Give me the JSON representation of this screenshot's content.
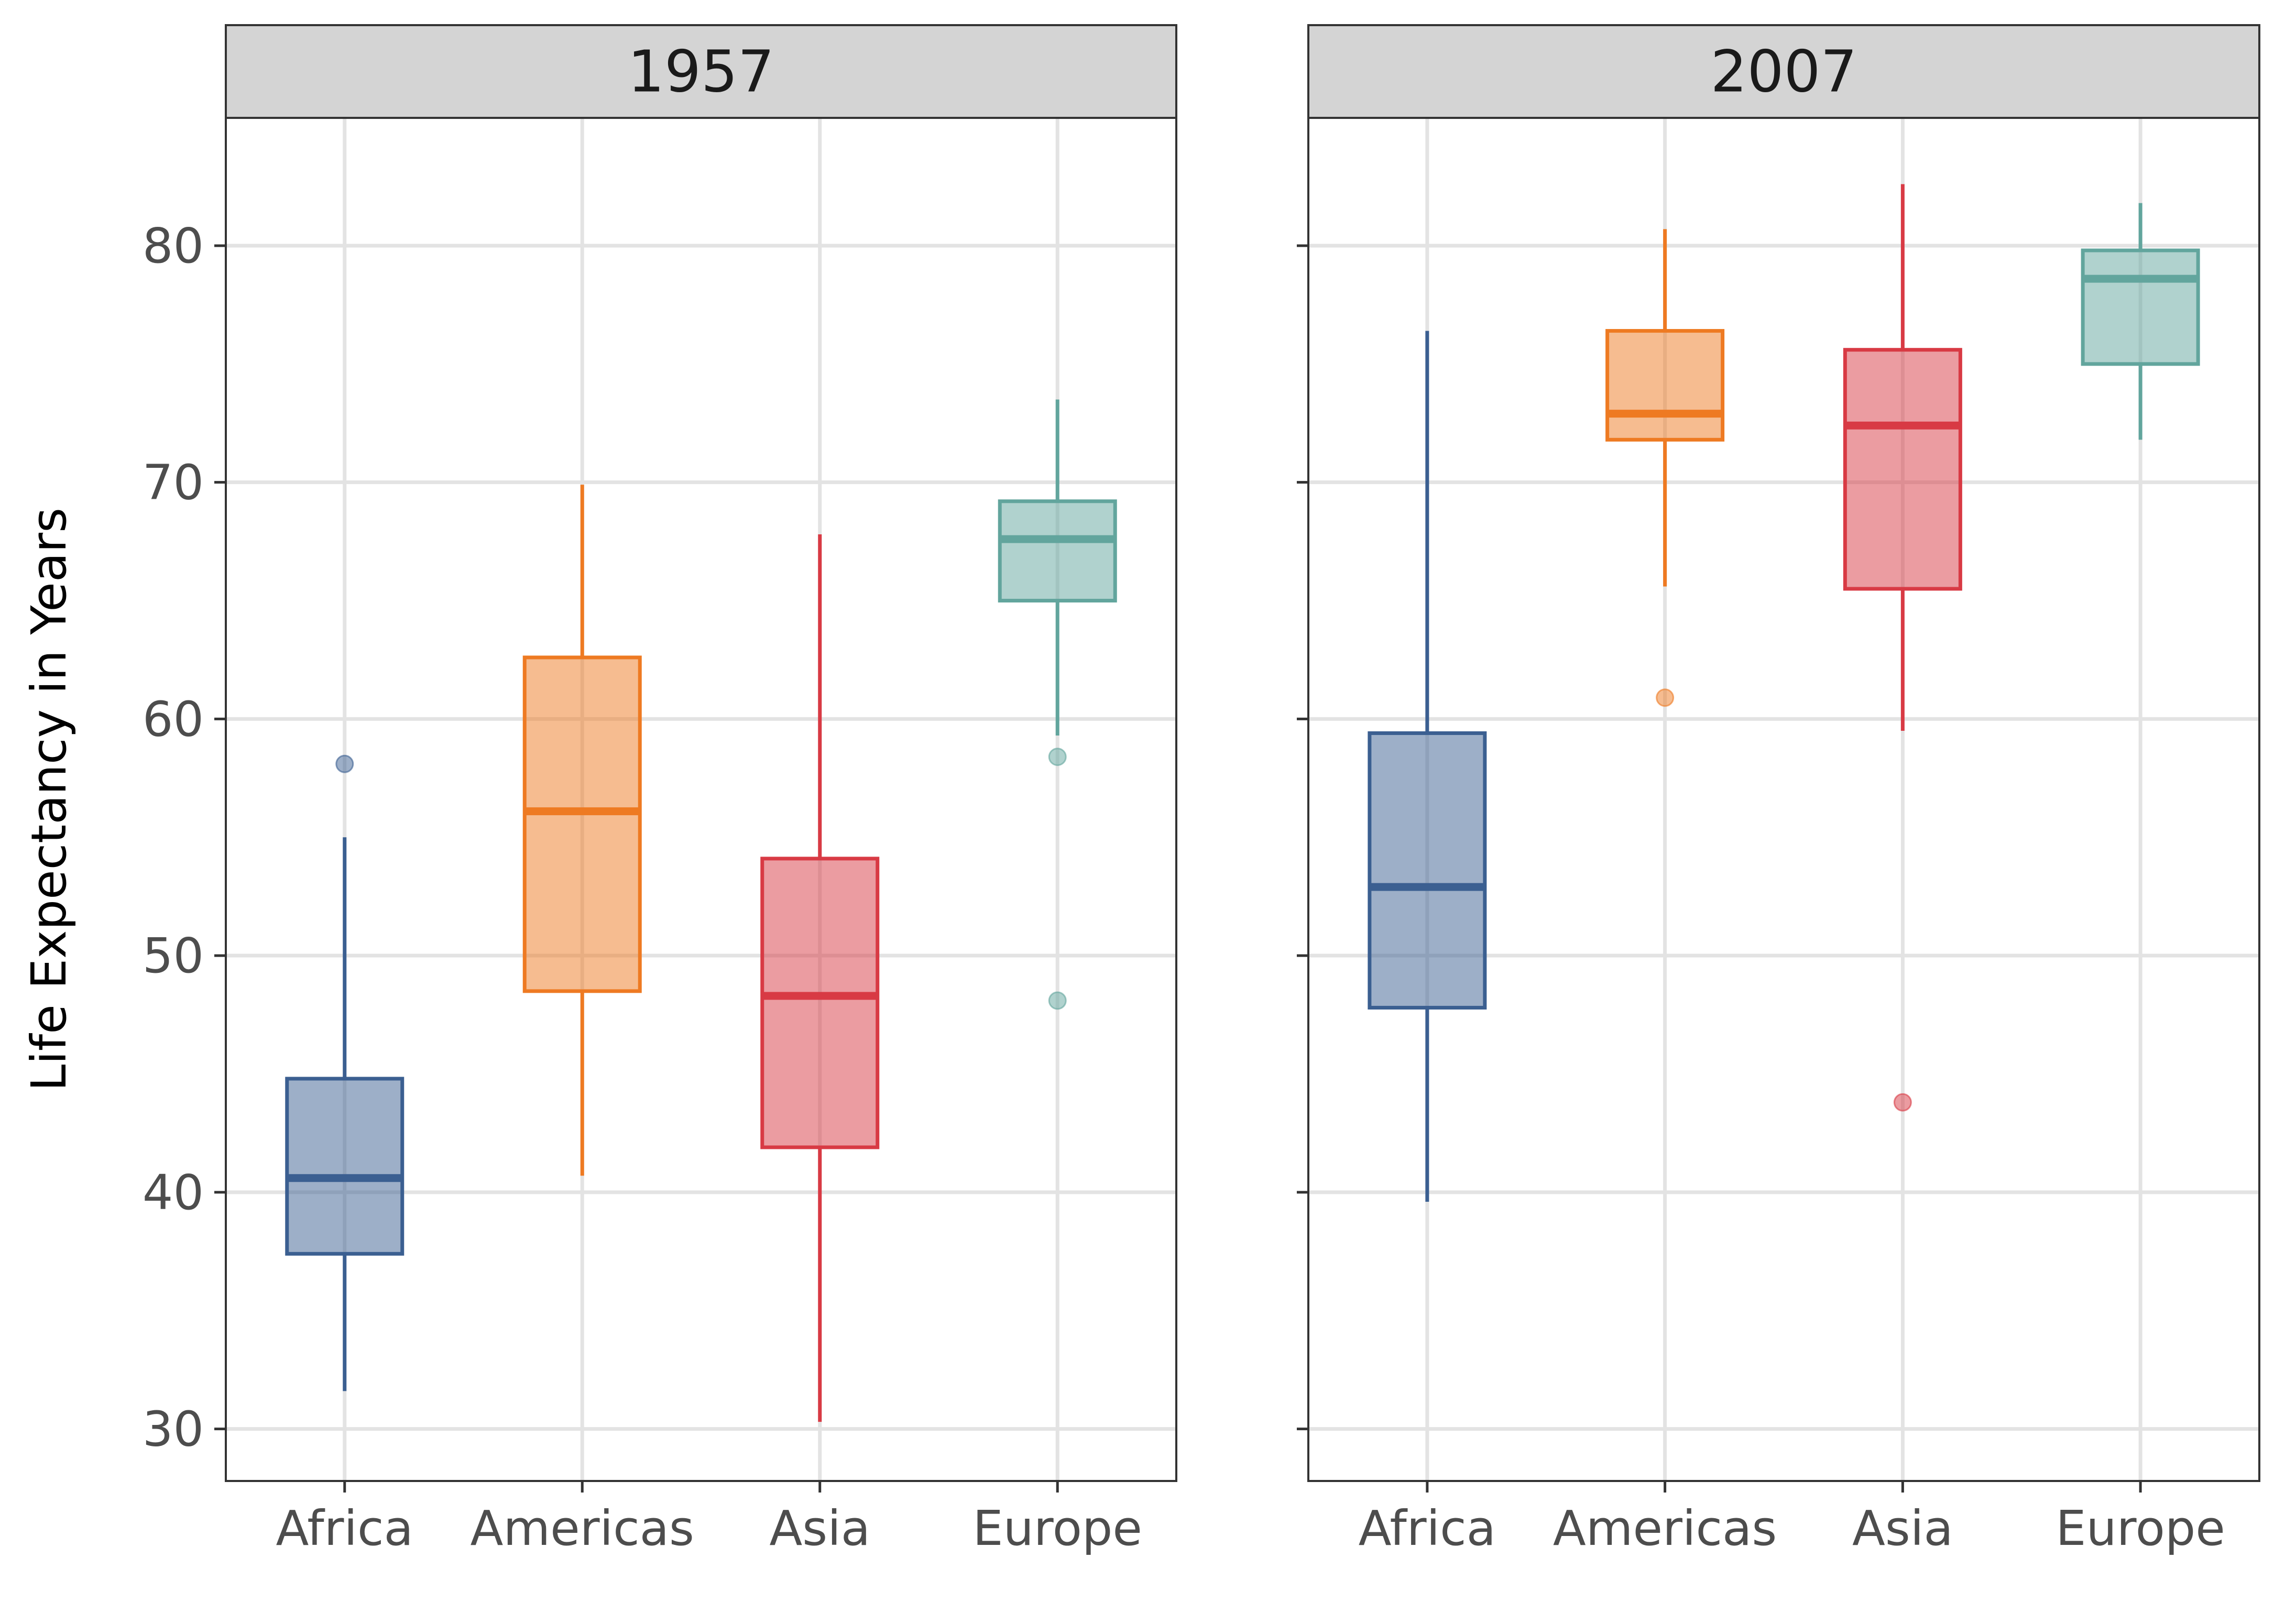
{
  "chart_data": {
    "type": "boxplot",
    "ylabel": "Life Expectancy in Years",
    "xlabel": "",
    "ylim": [
      27.8,
      85.4
    ],
    "yticks": [
      30,
      40,
      50,
      60,
      70,
      80
    ],
    "grid": true,
    "categories": [
      "Africa",
      "Americas",
      "Asia",
      "Europe"
    ],
    "colors": {
      "Africa": "#3b5f91",
      "Americas": "#ee7a22",
      "Asia": "#d83a44",
      "Europe": "#62a59d"
    },
    "facets": [
      {
        "label": "1957",
        "boxes": [
          {
            "category": "Africa",
            "whisker_low": 31.6,
            "q1": 37.4,
            "median": 40.6,
            "q3": 44.8,
            "whisker_high": 55.0,
            "outliers": [
              58.1
            ]
          },
          {
            "category": "Americas",
            "whisker_low": 40.7,
            "q1": 48.5,
            "median": 56.1,
            "q3": 62.6,
            "whisker_high": 69.9,
            "outliers": []
          },
          {
            "category": "Asia",
            "whisker_low": 30.3,
            "q1": 41.9,
            "median": 48.3,
            "q3": 54.1,
            "whisker_high": 67.8,
            "outliers": []
          },
          {
            "category": "Europe",
            "whisker_low": 59.3,
            "q1": 65.0,
            "median": 67.6,
            "q3": 69.2,
            "whisker_high": 73.5,
            "outliers": [
              58.4,
              48.1
            ]
          }
        ]
      },
      {
        "label": "2007",
        "boxes": [
          {
            "category": "Africa",
            "whisker_low": 39.6,
            "q1": 47.8,
            "median": 52.9,
            "q3": 59.4,
            "whisker_high": 76.4,
            "outliers": []
          },
          {
            "category": "Americas",
            "whisker_low": 65.6,
            "q1": 71.8,
            "median": 72.9,
            "q3": 76.4,
            "whisker_high": 80.7,
            "outliers": [
              60.9
            ]
          },
          {
            "category": "Asia",
            "whisker_low": 59.5,
            "q1": 65.5,
            "median": 72.4,
            "q3": 75.6,
            "whisker_high": 82.6,
            "outliers": [
              43.8
            ]
          },
          {
            "category": "Europe",
            "whisker_low": 71.8,
            "q1": 75.0,
            "median": 78.6,
            "q3": 79.8,
            "whisker_high": 81.8,
            "outliers": []
          }
        ]
      }
    ]
  }
}
